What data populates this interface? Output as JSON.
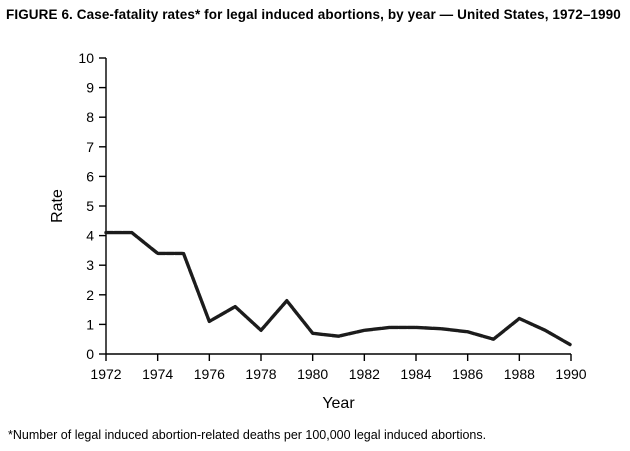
{
  "figure": {
    "title": "FIGURE 6. Case-fatality rates* for legal induced abortions, by year — United States, 1972–1990",
    "footnote": "*Number of legal induced abortion-related deaths per 100,000 legal induced abortions."
  },
  "chart_data": {
    "type": "line",
    "title": "",
    "xlabel": "Year",
    "ylabel": "Rate",
    "x": [
      1972,
      1973,
      1974,
      1975,
      1976,
      1977,
      1978,
      1979,
      1980,
      1981,
      1982,
      1983,
      1984,
      1985,
      1986,
      1987,
      1988,
      1989,
      1990
    ],
    "values": [
      4.1,
      4.1,
      3.4,
      3.4,
      1.1,
      1.6,
      0.8,
      1.8,
      0.7,
      0.6,
      0.8,
      0.9,
      0.9,
      0.85,
      0.75,
      0.5,
      1.2,
      0.8,
      0.3
    ],
    "ylim": [
      0,
      10
    ],
    "xlim": [
      1972,
      1990
    ],
    "y_tick_interval": 1,
    "x_tick_interval": 2,
    "grid": false,
    "legend": "none",
    "line_color": "#1c1c1c"
  }
}
